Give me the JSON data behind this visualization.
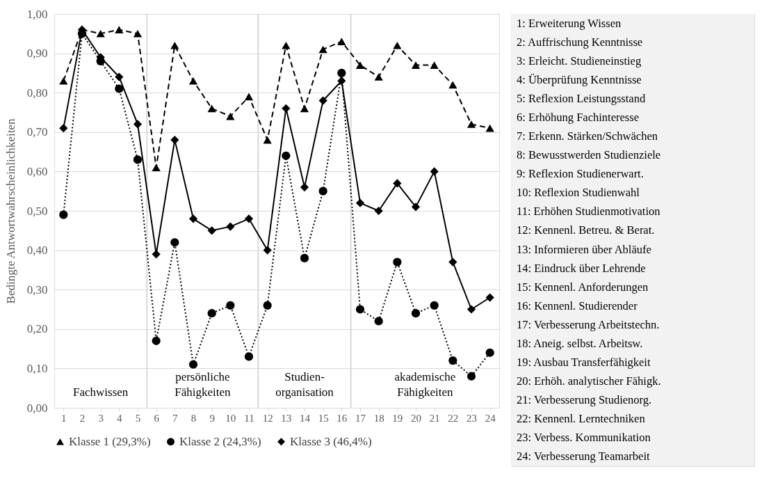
{
  "chart_data": {
    "type": "line",
    "ylabel": "Bedingte Antwortwahrscheinlichkeiten",
    "x": [
      1,
      2,
      3,
      4,
      5,
      6,
      7,
      8,
      9,
      10,
      11,
      12,
      13,
      14,
      15,
      16,
      17,
      18,
      19,
      20,
      21,
      22,
      23,
      24
    ],
    "xlim": [
      0.5,
      24.5
    ],
    "xticks": [
      1,
      2,
      3,
      4,
      5,
      6,
      7,
      8,
      9,
      10,
      11,
      12,
      13,
      14,
      15,
      16,
      17,
      18,
      19,
      20,
      21,
      22,
      23,
      24
    ],
    "ylim": [
      0,
      1
    ],
    "yticks": [
      {
        "value": 0,
        "label": "0,00"
      },
      {
        "value": 0.1,
        "label": "0,10"
      },
      {
        "value": 0.2,
        "label": "0,20"
      },
      {
        "value": 0.3,
        "label": "0,30"
      },
      {
        "value": 0.4,
        "label": "0,40"
      },
      {
        "value": 0.5,
        "label": "0,50"
      },
      {
        "value": 0.6,
        "label": "0,60"
      },
      {
        "value": 0.7,
        "label": "0,70"
      },
      {
        "value": 0.8,
        "label": "0,80"
      },
      {
        "value": 0.9,
        "label": "0,90"
      },
      {
        "value": 1,
        "label": "1,00"
      }
    ],
    "grid": "y",
    "legend": "bottom",
    "series": [
      {
        "name": "Klasse 1 (29,3%)",
        "color": "#000000",
        "marker": "triangle",
        "line_style": "dashed",
        "values": [
          0.83,
          0.96,
          0.95,
          0.96,
          0.95,
          0.61,
          0.92,
          0.83,
          0.76,
          0.74,
          0.79,
          0.68,
          0.92,
          0.76,
          0.91,
          0.93,
          0.87,
          0.84,
          0.92,
          0.87,
          0.87,
          0.82,
          0.72,
          0.71
        ]
      },
      {
        "name": "Klasse 2 (24,3%)",
        "color": "#000000",
        "marker": "circle",
        "line_style": "dotted",
        "values": [
          0.49,
          0.95,
          0.88,
          0.81,
          0.63,
          0.17,
          0.42,
          0.11,
          0.24,
          0.26,
          0.13,
          0.26,
          0.64,
          0.38,
          0.55,
          0.85,
          0.25,
          0.22,
          0.37,
          0.24,
          0.26,
          0.12,
          0.08,
          0.14
        ]
      },
      {
        "name": "Klasse 3 (46,4%)",
        "color": "#000000",
        "marker": "diamond",
        "line_style": "solid",
        "values": [
          0.71,
          0.96,
          0.89,
          0.84,
          0.72,
          0.39,
          0.68,
          0.48,
          0.45,
          0.46,
          0.48,
          0.4,
          0.76,
          0.56,
          0.78,
          0.83,
          0.52,
          0.5,
          0.57,
          0.51,
          0.6,
          0.37,
          0.25,
          0.28
        ]
      }
    ],
    "ref_lines": [
      {
        "axis": "x",
        "value": 5.5,
        "color": "#d9d9d9"
      },
      {
        "axis": "x",
        "value": 11.5,
        "color": "#d9d9d9"
      },
      {
        "axis": "x",
        "value": 16.5,
        "color": "#d9d9d9"
      }
    ],
    "annotations": [
      "Fachwissen",
      "persönliche\nFähigkeiten",
      "Studien-\norganisation",
      "akademische\nFähigkeiten",
      "1: Erweiterung Wissen",
      "2: Auffrischung Kenntnisse",
      "3: Erleicht. Studieneinstieg",
      "4: Überprüfung Kenntnisse",
      "5: Reflexion Leistungsstand",
      "6: Erhöhung Fachinteresse",
      "7: Erkenn. Stärken/Schwächen",
      "8: Bewusstwerden Studienziele",
      "9: Reflexion Studienerwart.",
      "10: Reflexion Studienwahl",
      "11: Erhöhen Studienmotivation",
      "12: Kennenl. Betreu. & Berat.",
      "13: Informieren über Abläufe",
      "14: Eindruck über Lehrende",
      "15: Kennenl. Anforderungen",
      "16: Kennenl. Studierender",
      "17: Verbesserung Arbeitstechn.",
      "18: Aneig. selbst. Arbeitsw.",
      "19: Ausbau Transferfähigkeit",
      "20: Erhöh. analytischer Fähigk.",
      "21: Verbesserung Studienorg.",
      "22: Kennenl. Lerntechniken",
      "23: Verbess. Kommunikation",
      "24: Verbesserung Teamarbeit"
    ]
  }
}
